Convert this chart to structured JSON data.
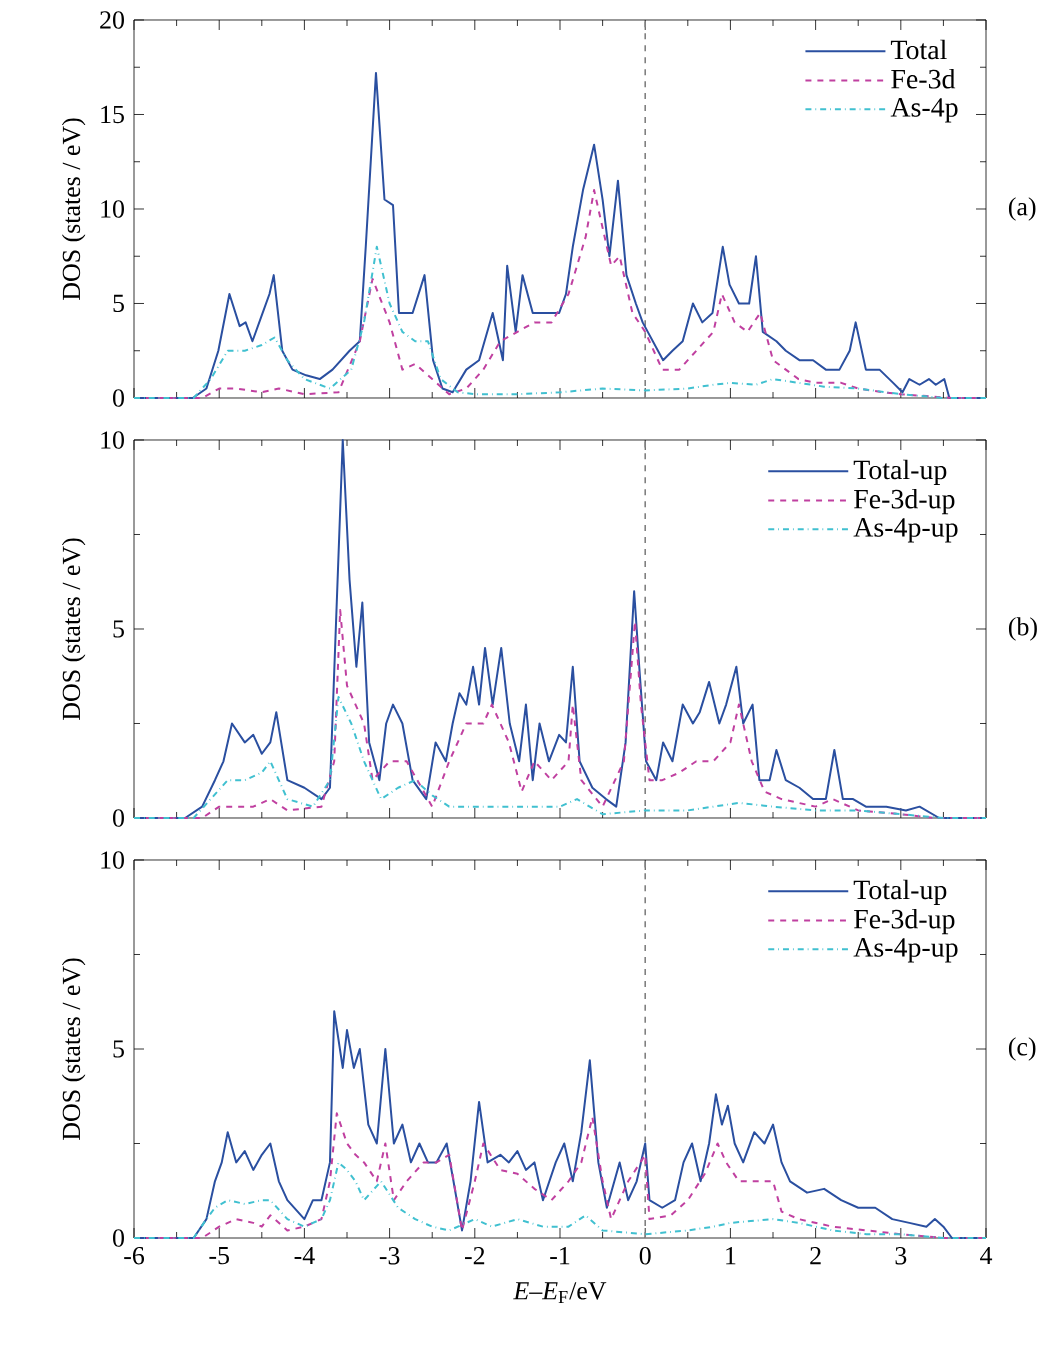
{
  "chart_data": [
    {
      "type": "line",
      "ylabel": "DOS (states / eV)",
      "xlim": [
        -6,
        4
      ],
      "ylim": [
        0,
        20
      ],
      "xticks": [
        -6,
        -5,
        -4,
        -3,
        -2,
        -1,
        0,
        1,
        2,
        3,
        4
      ],
      "yticks": [
        0,
        5,
        10,
        15,
        20
      ],
      "tick_labels": "y",
      "legend": "top right",
      "grid": false,
      "annotations": [
        "(a)"
      ],
      "ref_lines": [
        {
          "axis": "x",
          "value": 0,
          "color": "#808080",
          "line_style": "dashed"
        }
      ],
      "series": [
        {
          "name": "Total",
          "color": "#2a4fa0",
          "line_style": "solid",
          "x": [
            -6,
            -5.31,
            -5.15,
            -5.01,
            -4.88,
            -4.76,
            -4.69,
            -4.61,
            -4.49,
            -4.41,
            -4.36,
            -4.26,
            -4.14,
            -3.98,
            -3.82,
            -3.67,
            -3.47,
            -3.35,
            -3.28,
            -3.16,
            -3.06,
            -2.96,
            -2.89,
            -2.73,
            -2.59,
            -2.49,
            -2.38,
            -2.26,
            -2.1,
            -1.95,
            -1.79,
            -1.67,
            -1.62,
            -1.52,
            -1.44,
            -1.32,
            -1.16,
            -1.01,
            -0.93,
            -0.85,
            -0.73,
            -0.6,
            -0.5,
            -0.42,
            -0.32,
            -0.22,
            -0.11,
            -0.03,
            0.09,
            0.21,
            0.32,
            0.44,
            0.56,
            0.67,
            0.79,
            0.91,
            0.99,
            1.1,
            1.22,
            1.3,
            1.38,
            1.54,
            1.65,
            1.81,
            1.97,
            2.12,
            2.28,
            2.4,
            2.47,
            2.59,
            2.75,
            2.91,
            3.02,
            3.1,
            3.22,
            3.33,
            3.41,
            3.51,
            3.57,
            4
          ],
          "values": [
            0,
            0,
            0.5,
            2.5,
            5.5,
            3.8,
            4.0,
            3.0,
            4.5,
            5.5,
            6.5,
            2.5,
            1.5,
            1.2,
            1.0,
            1.5,
            2.5,
            3,
            8,
            17.2,
            10.5,
            10.2,
            4.5,
            4.5,
            6.5,
            2.0,
            0.5,
            0.3,
            1.5,
            2.0,
            4.5,
            2.0,
            7,
            3.5,
            6.5,
            4.5,
            4.5,
            4.5,
            5.5,
            8,
            11,
            13.4,
            10.5,
            7.5,
            11.5,
            6.5,
            5,
            4.0,
            3.0,
            2.0,
            2.5,
            3.0,
            5.0,
            4.0,
            4.5,
            8.0,
            6.0,
            5.0,
            5.0,
            7.5,
            3.5,
            3,
            2.5,
            2.0,
            2.0,
            1.5,
            1.5,
            2.5,
            4.0,
            1.5,
            1.5,
            0.8,
            0.3,
            1.0,
            0.7,
            1.0,
            0.7,
            1.0,
            0,
            0
          ]
        },
        {
          "name": "Fe-3d",
          "color": "#c040a0",
          "line_style": "dashed",
          "x": [
            -6,
            -5.2,
            -5.0,
            -4.8,
            -4.5,
            -4.3,
            -4.0,
            -3.6,
            -3.35,
            -3.2,
            -3.0,
            -2.85,
            -2.7,
            -2.5,
            -2.3,
            -2.1,
            -1.9,
            -1.7,
            -1.5,
            -1.3,
            -1.1,
            -0.9,
            -0.7,
            -0.6,
            -0.5,
            -0.4,
            -0.3,
            -0.15,
            0,
            0.2,
            0.4,
            0.6,
            0.8,
            0.9,
            1.05,
            1.2,
            1.35,
            1.5,
            1.8,
            2.0,
            2.3,
            2.5,
            2.8,
            3.0,
            3.3,
            3.6,
            4
          ],
          "values": [
            0,
            0,
            0.5,
            0.5,
            0.3,
            0.5,
            0.2,
            0.3,
            3,
            6.3,
            4,
            1.5,
            1.8,
            1.0,
            0.2,
            0.5,
            1.5,
            3,
            3.5,
            4,
            4,
            5.5,
            8.5,
            11,
            9,
            7,
            7.5,
            4.5,
            3.5,
            1.5,
            1.5,
            2.5,
            3.5,
            5.5,
            4,
            3.5,
            4.5,
            2,
            1.0,
            0.8,
            0.8,
            0.5,
            0.3,
            0.2,
            0.1,
            0,
            0
          ]
        },
        {
          "name": "As-4p",
          "color": "#40c0d0",
          "line_style": "dashdot",
          "x": [
            -6,
            -5.3,
            -5.1,
            -4.9,
            -4.7,
            -4.5,
            -4.35,
            -4.2,
            -4.0,
            -3.7,
            -3.45,
            -3.3,
            -3.15,
            -3.0,
            -2.85,
            -2.7,
            -2.55,
            -2.4,
            -2.2,
            -2.0,
            -1.5,
            -1.0,
            -0.5,
            0,
            0.5,
            0.8,
            1.0,
            1.3,
            1.5,
            1.8,
            2.1,
            2.5,
            3.0,
            3.5,
            4
          ],
          "values": [
            0,
            0,
            1.0,
            2.5,
            2.5,
            2.8,
            3.2,
            2.0,
            1.0,
            0.5,
            1.5,
            4,
            8.0,
            5.0,
            3.5,
            3.0,
            3.0,
            1.0,
            0.3,
            0.2,
            0.2,
            0.3,
            0.5,
            0.4,
            0.5,
            0.7,
            0.8,
            0.7,
            1.0,
            0.8,
            0.6,
            0.5,
            0.2,
            0,
            0
          ]
        }
      ]
    },
    {
      "type": "line",
      "ylabel": "DOS (states / eV)",
      "xlim": [
        -6,
        4
      ],
      "ylim": [
        0,
        10
      ],
      "xticks": [
        -6,
        -5,
        -4,
        -3,
        -2,
        -1,
        0,
        1,
        2,
        3,
        4
      ],
      "yticks": [
        0,
        5,
        10
      ],
      "tick_labels": "y",
      "legend": "top right",
      "grid": false,
      "annotations": [
        "(b)"
      ],
      "ref_lines": [
        {
          "axis": "x",
          "value": 0,
          "color": "#808080",
          "line_style": "dashed"
        }
      ],
      "series": [
        {
          "name": "Total-up",
          "color": "#2a4fa0",
          "line_style": "solid",
          "x": [
            -6,
            -5.4,
            -5.2,
            -5.05,
            -4.95,
            -4.85,
            -4.7,
            -4.6,
            -4.5,
            -4.4,
            -4.33,
            -4.2,
            -4.0,
            -3.8,
            -3.7,
            -3.55,
            -3.47,
            -3.39,
            -3.32,
            -3.24,
            -3.12,
            -3.04,
            -2.96,
            -2.85,
            -2.73,
            -2.57,
            -2.46,
            -2.34,
            -2.26,
            -2.18,
            -2.1,
            -2.02,
            -1.95,
            -1.88,
            -1.79,
            -1.69,
            -1.59,
            -1.48,
            -1.4,
            -1.32,
            -1.24,
            -1.13,
            -1.01,
            -0.93,
            -0.85,
            -0.77,
            -0.62,
            -0.46,
            -0.34,
            -0.23,
            -0.13,
            -0.07,
            0.01,
            0.13,
            0.21,
            0.32,
            0.44,
            0.56,
            0.64,
            0.75,
            0.87,
            0.95,
            1.07,
            1.15,
            1.26,
            1.34,
            1.46,
            1.54,
            1.65,
            1.81,
            1.97,
            2.12,
            2.22,
            2.32,
            2.44,
            2.59,
            2.83,
            3.06,
            3.22,
            3.45,
            4
          ],
          "values": [
            0,
            0,
            0.3,
            1.0,
            1.5,
            2.5,
            2.0,
            2.2,
            1.7,
            2.0,
            2.8,
            1.0,
            0.8,
            0.5,
            0.8,
            10.0,
            6.3,
            4,
            5.7,
            2,
            1,
            2.5,
            3.0,
            2.5,
            1.0,
            0.5,
            2.0,
            1.5,
            2.5,
            3.3,
            3.0,
            4.0,
            3.0,
            4.5,
            3.0,
            4.5,
            2.5,
            1.5,
            3.0,
            1.0,
            2.5,
            1.5,
            2.2,
            2.0,
            4.0,
            1.5,
            0.8,
            0.5,
            0.3,
            2.0,
            6.0,
            4,
            1.5,
            1.0,
            2.0,
            1.5,
            3.0,
            2.5,
            2.8,
            3.6,
            2.5,
            3.0,
            4.0,
            2.5,
            3.0,
            1.0,
            1.0,
            1.8,
            1.0,
            0.8,
            0.5,
            0.5,
            1.8,
            0.5,
            0.5,
            0.3,
            0.3,
            0.2,
            0.3,
            0,
            0
          ]
        },
        {
          "name": "Fe-3d-up",
          "color": "#c040a0",
          "line_style": "dashed",
          "x": [
            -6,
            -5.2,
            -5.0,
            -4.8,
            -4.6,
            -4.4,
            -4.2,
            -3.8,
            -3.65,
            -3.58,
            -3.5,
            -3.4,
            -3.3,
            -3.2,
            -3.0,
            -2.8,
            -2.5,
            -2.3,
            -2.1,
            -1.9,
            -1.8,
            -1.6,
            -1.45,
            -1.3,
            -1.1,
            -0.9,
            -0.85,
            -0.75,
            -0.5,
            -0.25,
            -0.12,
            -0.05,
            0.05,
            0.2,
            0.4,
            0.6,
            0.8,
            1.0,
            1.1,
            1.25,
            1.4,
            1.6,
            2.0,
            2.2,
            2.5,
            3.0,
            3.4,
            4
          ],
          "values": [
            0,
            0,
            0.3,
            0.3,
            0.3,
            0.5,
            0.2,
            0.3,
            1.5,
            5.5,
            3.5,
            3.0,
            2.5,
            1.0,
            1.5,
            1.5,
            0.3,
            1.5,
            2.5,
            2.5,
            3.0,
            2.0,
            0.7,
            1.5,
            1.0,
            1.5,
            3.0,
            1.0,
            0.3,
            1.5,
            5.2,
            3,
            1.0,
            1.0,
            1.2,
            1.5,
            1.5,
            2.0,
            3.0,
            1.5,
            0.7,
            0.5,
            0.3,
            0.5,
            0.2,
            0.1,
            0,
            0
          ]
        },
        {
          "name": "As-4p-up",
          "color": "#40c0d0",
          "line_style": "dashdot",
          "x": [
            -6,
            -5.3,
            -5.1,
            -4.9,
            -4.7,
            -4.5,
            -4.4,
            -4.2,
            -3.9,
            -3.7,
            -3.6,
            -3.45,
            -3.3,
            -3.1,
            -2.9,
            -2.7,
            -2.5,
            -2.3,
            -2.0,
            -1.5,
            -1.0,
            -0.8,
            -0.5,
            0,
            0.5,
            0.8,
            1.1,
            1.5,
            2.0,
            2.5,
            3.0,
            3.5,
            4
          ],
          "values": [
            0,
            0,
            0.5,
            1.0,
            1.0,
            1.2,
            1.5,
            0.5,
            0.3,
            1.0,
            3.2,
            2.5,
            1.5,
            0.5,
            0.8,
            1.0,
            0.6,
            0.3,
            0.3,
            0.3,
            0.3,
            0.5,
            0.1,
            0.2,
            0.2,
            0.3,
            0.4,
            0.3,
            0.2,
            0.2,
            0.1,
            0,
            0
          ]
        }
      ]
    },
    {
      "type": "line",
      "xlabel": "*E*–*E*$_{F}$/eV",
      "ylabel": "DOS (states / eV)",
      "xlim": [
        -6,
        4
      ],
      "ylim": [
        0,
        10
      ],
      "xticks": [
        -6,
        -5,
        -4,
        -3,
        -2,
        -1,
        0,
        1,
        2,
        3,
        4
      ],
      "yticks": [
        0,
        5,
        10
      ],
      "legend": "top right",
      "grid": false,
      "annotations": [
        "(c)"
      ],
      "ref_lines": [
        {
          "axis": "x",
          "value": 0,
          "color": "#808080",
          "line_style": "dashed"
        }
      ],
      "series": [
        {
          "name": "Total-up",
          "color": "#2a4fa0",
          "line_style": "solid",
          "x": [
            -6,
            -5.3,
            -5.15,
            -5.05,
            -4.97,
            -4.9,
            -4.8,
            -4.7,
            -4.6,
            -4.5,
            -4.4,
            -4.3,
            -4.2,
            -4.0,
            -3.9,
            -3.8,
            -3.7,
            -3.65,
            -3.55,
            -3.5,
            -3.42,
            -3.35,
            -3.25,
            -3.15,
            -3.05,
            -2.95,
            -2.85,
            -2.75,
            -2.65,
            -2.55,
            -2.45,
            -2.33,
            -2.25,
            -2.15,
            -2.05,
            -1.95,
            -1.85,
            -1.7,
            -1.6,
            -1.5,
            -1.4,
            -1.3,
            -1.2,
            -1.05,
            -0.95,
            -0.85,
            -0.75,
            -0.65,
            -0.55,
            -0.45,
            -0.3,
            -0.2,
            -0.1,
            0,
            0.05,
            0.2,
            0.35,
            0.45,
            0.55,
            0.65,
            0.75,
            0.83,
            0.9,
            0.97,
            1.05,
            1.15,
            1.28,
            1.4,
            1.5,
            1.6,
            1.7,
            1.9,
            2.1,
            2.3,
            2.5,
            2.7,
            2.9,
            3.1,
            3.3,
            3.4,
            3.5,
            3.6,
            4
          ],
          "values": [
            0,
            0,
            0.5,
            1.5,
            2.0,
            2.8,
            2.0,
            2.3,
            1.8,
            2.2,
            2.5,
            1.5,
            1.0,
            0.5,
            1.0,
            1.0,
            2.0,
            6.0,
            4.5,
            5.5,
            4.5,
            5.0,
            3.0,
            2.5,
            5.0,
            2.5,
            3.0,
            2.0,
            2.5,
            2.0,
            2.0,
            2.5,
            1.5,
            0.2,
            1.5,
            3.6,
            2.0,
            2.2,
            2.0,
            2.3,
            1.8,
            2.0,
            1.0,
            2.0,
            2.5,
            1.5,
            2.8,
            4.7,
            2.0,
            0.8,
            2.0,
            1.0,
            1.5,
            2.5,
            1.0,
            0.8,
            1.0,
            2.0,
            2.5,
            1.5,
            2.5,
            3.8,
            3.0,
            3.5,
            2.5,
            2.0,
            2.8,
            2.5,
            3.0,
            2.0,
            1.5,
            1.2,
            1.3,
            1.0,
            0.8,
            0.8,
            0.5,
            0.4,
            0.3,
            0.5,
            0.3,
            0,
            0
          ]
        },
        {
          "name": "Fe-3d-up",
          "color": "#c040a0",
          "line_style": "dashed",
          "x": [
            -6,
            -5.2,
            -5.0,
            -4.8,
            -4.6,
            -4.5,
            -4.4,
            -4.2,
            -4.0,
            -3.8,
            -3.7,
            -3.62,
            -3.5,
            -3.4,
            -3.3,
            -3.15,
            -3.05,
            -2.95,
            -2.8,
            -2.6,
            -2.45,
            -2.3,
            -2.15,
            -2.0,
            -1.9,
            -1.7,
            -1.5,
            -1.3,
            -1.1,
            -0.9,
            -0.75,
            -0.62,
            -0.5,
            -0.4,
            -0.2,
            0,
            0.05,
            0.3,
            0.5,
            0.7,
            0.85,
            0.95,
            1.1,
            1.3,
            1.5,
            1.6,
            1.8,
            2.2,
            2.6,
            3.0,
            3.5,
            4
          ],
          "values": [
            0,
            0,
            0.3,
            0.5,
            0.4,
            0.3,
            0.6,
            0.2,
            0.3,
            0.5,
            1.5,
            3.3,
            2.5,
            2.2,
            2.0,
            1.5,
            2.5,
            1.0,
            1.5,
            2.0,
            2.0,
            2.2,
            0.2,
            1.5,
            2.5,
            1.8,
            1.7,
            1.3,
            1.0,
            1.5,
            2.0,
            3.2,
            1.5,
            0.5,
            1.5,
            2.2,
            0.5,
            0.6,
            1.0,
            1.7,
            2.5,
            2.0,
            1.5,
            1.5,
            1.5,
            0.7,
            0.5,
            0.3,
            0.2,
            0.1,
            0,
            0
          ]
        },
        {
          "name": "As-4p-up",
          "color": "#40c0d0",
          "line_style": "dashdot",
          "x": [
            -6,
            -5.3,
            -5.15,
            -5.05,
            -4.9,
            -4.7,
            -4.5,
            -4.4,
            -4.2,
            -4.0,
            -3.8,
            -3.7,
            -3.6,
            -3.5,
            -3.4,
            -3.3,
            -3.1,
            -2.9,
            -2.7,
            -2.5,
            -2.3,
            -2.0,
            -1.8,
            -1.5,
            -1.2,
            -0.9,
            -0.7,
            -0.5,
            0,
            0.5,
            0.8,
            1.0,
            1.5,
            1.8,
            2.2,
            2.6,
            3.0,
            3.5,
            4
          ],
          "values": [
            0,
            0,
            0.5,
            0.8,
            1.0,
            0.9,
            1.0,
            1.0,
            0.5,
            0.3,
            0.5,
            1.0,
            2.0,
            1.8,
            1.5,
            1.0,
            1.5,
            0.8,
            0.5,
            0.3,
            0.2,
            0.5,
            0.3,
            0.5,
            0.3,
            0.3,
            0.6,
            0.2,
            0.1,
            0.2,
            0.3,
            0.4,
            0.5,
            0.4,
            0.2,
            0.1,
            0.1,
            0,
            0
          ]
        }
      ]
    }
  ]
}
